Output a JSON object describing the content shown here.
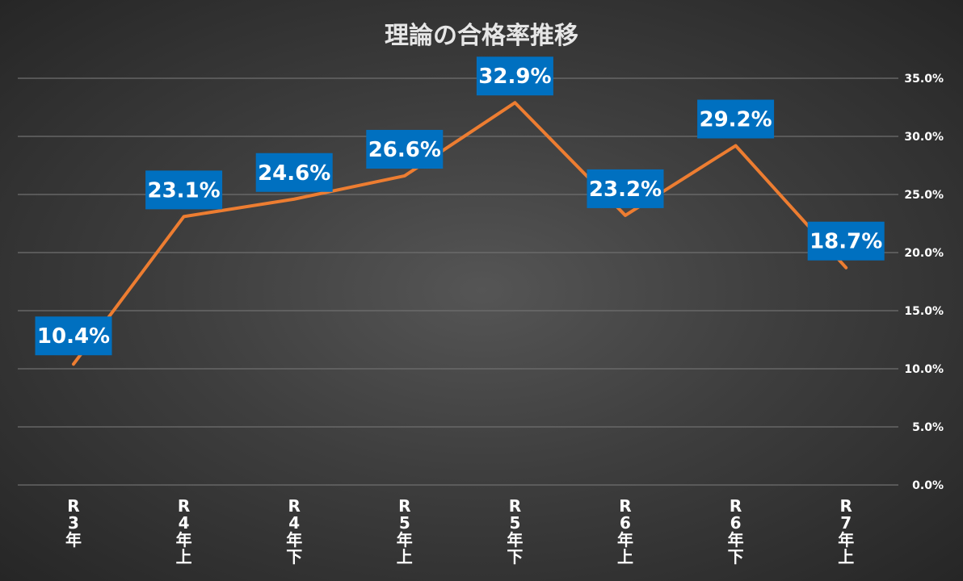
{
  "chart_data": {
    "type": "line",
    "title": "理論の合格率推移",
    "categories": [
      [
        "R",
        "3",
        "年"
      ],
      [
        "R",
        "4",
        "年",
        "上"
      ],
      [
        "R",
        "4",
        "年",
        "下"
      ],
      [
        "R",
        "5",
        "年",
        "上"
      ],
      [
        "R",
        "5",
        "年",
        "下"
      ],
      [
        "R",
        "6",
        "年",
        "上"
      ],
      [
        "R",
        "6",
        "年",
        "下"
      ],
      [
        "R",
        "7",
        "年",
        "上"
      ]
    ],
    "series": [
      {
        "values": [
          10.4,
          23.1,
          24.6,
          26.6,
          32.9,
          23.2,
          29.2,
          18.7
        ],
        "labels": [
          "10.4%",
          "23.1%",
          "24.6%",
          "26.6%",
          "32.9%",
          "23.2%",
          "29.2%",
          "18.7%"
        ]
      }
    ],
    "yticks": [
      "0.0%",
      "5.0%",
      "10.0%",
      "15.0%",
      "20.0%",
      "25.0%",
      "30.0%",
      "35.0%"
    ],
    "ylim": [
      0,
      35
    ],
    "y_axis_position": "right",
    "grid": true,
    "legend": "none",
    "colors": {
      "line": "#ed7d31",
      "label_bg": "#0070c0",
      "grid": "#6f6f6f"
    }
  }
}
